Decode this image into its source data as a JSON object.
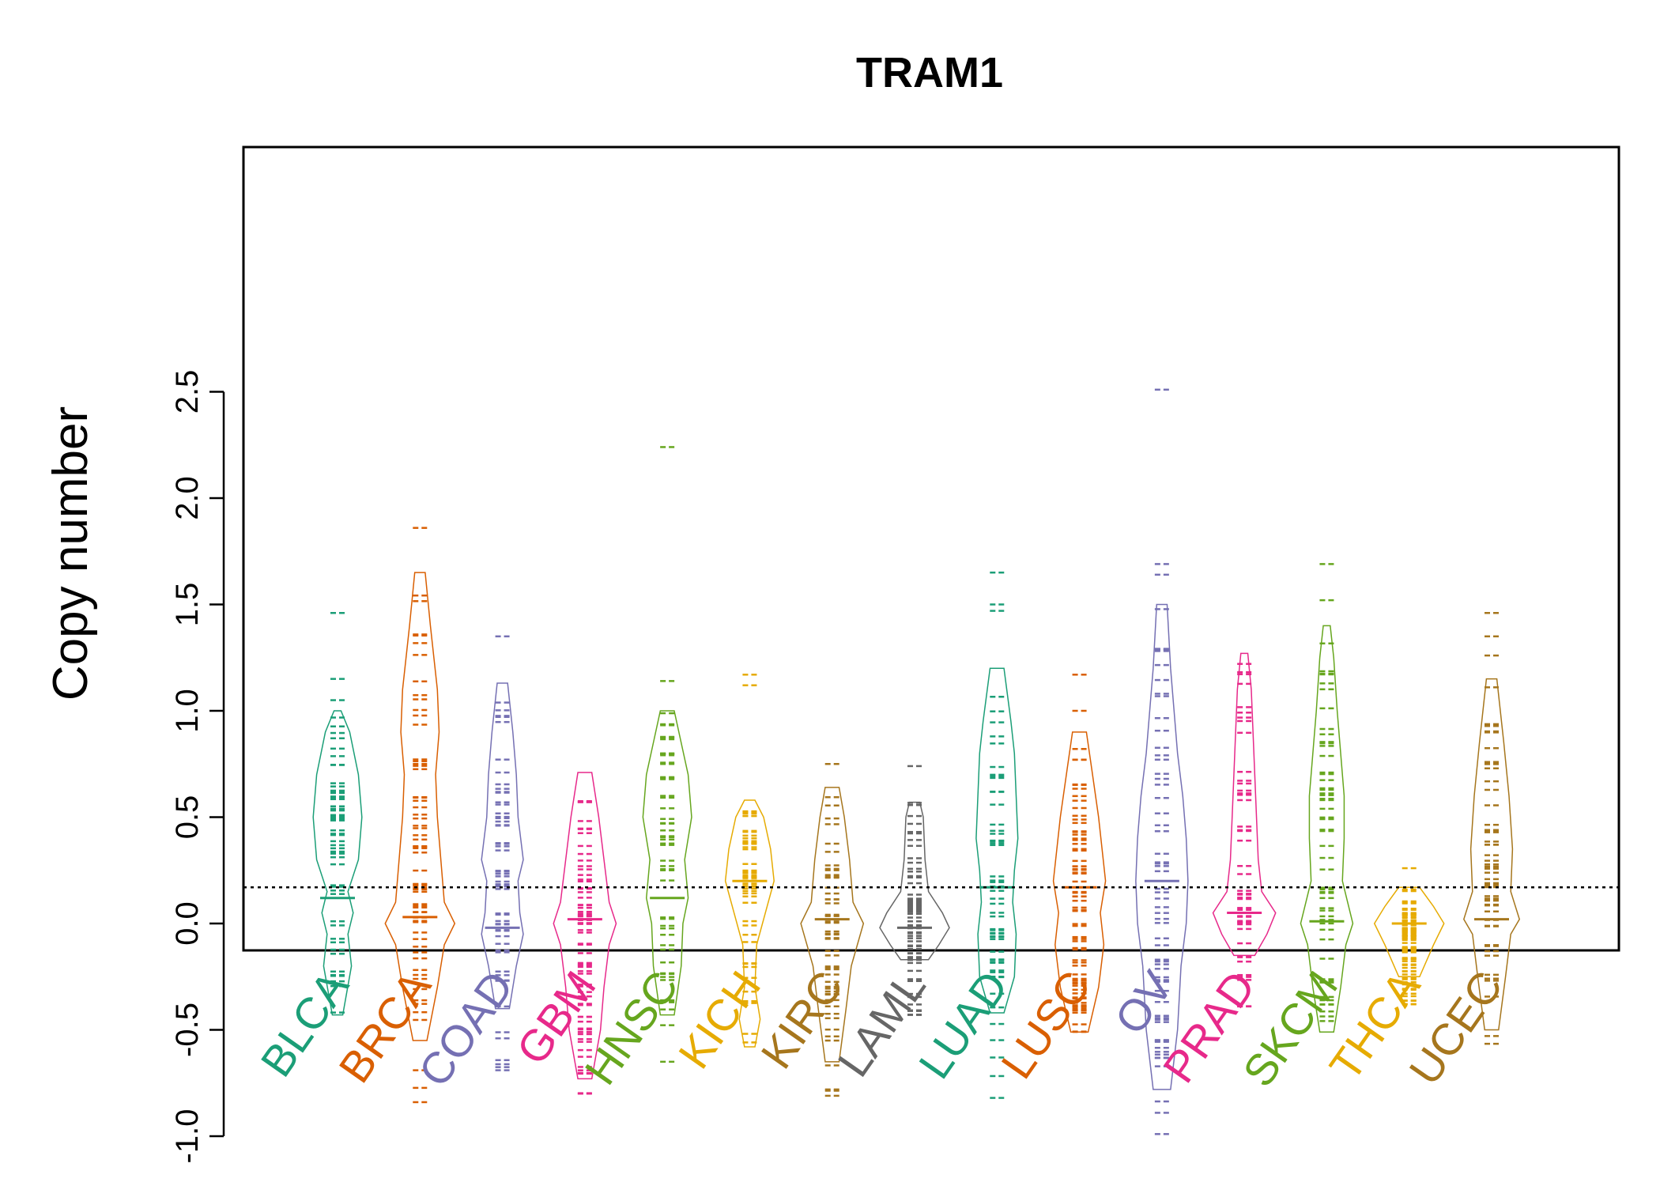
{
  "chart_data": {
    "type": "beanplot",
    "title": "TRAM1",
    "xlabel": "",
    "ylabel": "Copy number",
    "ylim": [
      -1.12,
      2.66
    ],
    "yticks": [
      -1.0,
      -0.5,
      0.0,
      0.5,
      1.0,
      1.5,
      2.0,
      2.5
    ],
    "ytick_labels": [
      "-1.0",
      "-0.5",
      "0.0",
      "0.5",
      "1.0",
      "1.5",
      "2.0",
      "2.5"
    ],
    "reference_line": 0.17,
    "grid": false,
    "legend": "none",
    "series": [
      {
        "name": "BLCA",
        "color": "#1B9E77",
        "median": 0.12,
        "range": [
          -0.43,
          1.46
        ],
        "outliers": [
          1.46,
          1.15,
          1.05
        ],
        "density": [
          [
            -0.43,
            0.15
          ],
          [
            -0.2,
            0.4
          ],
          [
            -0.05,
            0.3
          ],
          [
            0.05,
            0.45
          ],
          [
            0.15,
            0.3
          ],
          [
            0.3,
            0.6
          ],
          [
            0.5,
            0.7
          ],
          [
            0.7,
            0.6
          ],
          [
            0.9,
            0.35
          ],
          [
            1.0,
            0.1
          ]
        ]
      },
      {
        "name": "BRCA",
        "color": "#D95F02",
        "median": 0.03,
        "range": [
          -0.84,
          1.86
        ],
        "outliers": [
          1.86,
          -0.69,
          -0.84
        ],
        "density": [
          [
            -0.55,
            0.2
          ],
          [
            -0.3,
            0.5
          ],
          [
            -0.1,
            0.7
          ],
          [
            0.0,
            1.0
          ],
          [
            0.1,
            0.7
          ],
          [
            0.3,
            0.6
          ],
          [
            0.5,
            0.5
          ],
          [
            0.7,
            0.45
          ],
          [
            0.9,
            0.55
          ],
          [
            1.1,
            0.5
          ],
          [
            1.4,
            0.3
          ],
          [
            1.65,
            0.15
          ]
        ]
      },
      {
        "name": "COAD",
        "color": "#7570B3",
        "median": -0.02,
        "range": [
          -0.69,
          1.35
        ],
        "outliers": [
          1.35,
          -0.54,
          -0.69
        ],
        "density": [
          [
            -0.4,
            0.2
          ],
          [
            -0.2,
            0.4
          ],
          [
            -0.05,
            0.6
          ],
          [
            0.05,
            0.5
          ],
          [
            0.2,
            0.45
          ],
          [
            0.3,
            0.6
          ],
          [
            0.5,
            0.45
          ],
          [
            0.7,
            0.4
          ],
          [
            0.9,
            0.3
          ],
          [
            1.13,
            0.15
          ]
        ]
      },
      {
        "name": "GBM",
        "color": "#E7298A",
        "median": 0.02,
        "range": [
          -0.8,
          0.71
        ],
        "outliers": [
          -0.8
        ],
        "density": [
          [
            -0.73,
            0.2
          ],
          [
            -0.5,
            0.45
          ],
          [
            -0.3,
            0.55
          ],
          [
            -0.1,
            0.7
          ],
          [
            0.0,
            0.9
          ],
          [
            0.1,
            0.7
          ],
          [
            0.3,
            0.55
          ],
          [
            0.5,
            0.4
          ],
          [
            0.71,
            0.2
          ]
        ]
      },
      {
        "name": "HNSC",
        "color": "#66A61E",
        "median": 0.12,
        "range": [
          -0.65,
          2.24
        ],
        "outliers": [
          2.24,
          1.14,
          -0.65
        ],
        "density": [
          [
            -0.43,
            0.2
          ],
          [
            -0.2,
            0.4
          ],
          [
            0.0,
            0.45
          ],
          [
            0.12,
            0.6
          ],
          [
            0.3,
            0.5
          ],
          [
            0.5,
            0.7
          ],
          [
            0.7,
            0.6
          ],
          [
            0.85,
            0.4
          ],
          [
            1.0,
            0.2
          ]
        ]
      },
      {
        "name": "KICH",
        "color": "#E6AB02",
        "median": 0.2,
        "range": [
          -0.6,
          1.17
        ],
        "outliers": [
          1.17,
          1.12
        ],
        "density": [
          [
            -0.58,
            0.15
          ],
          [
            -0.45,
            0.3
          ],
          [
            -0.3,
            0.15
          ],
          [
            -0.1,
            0.2
          ],
          [
            0.05,
            0.45
          ],
          [
            0.2,
            0.7
          ],
          [
            0.35,
            0.6
          ],
          [
            0.5,
            0.4
          ],
          [
            0.58,
            0.15
          ]
        ]
      },
      {
        "name": "KIRC",
        "color": "#A6761D",
        "median": 0.02,
        "range": [
          -0.81,
          0.75
        ],
        "outliers": [
          0.75,
          -0.81
        ],
        "density": [
          [
            -0.65,
            0.2
          ],
          [
            -0.4,
            0.4
          ],
          [
            -0.2,
            0.55
          ],
          [
            0.0,
            0.9
          ],
          [
            0.1,
            0.6
          ],
          [
            0.3,
            0.5
          ],
          [
            0.5,
            0.35
          ],
          [
            0.64,
            0.2
          ]
        ]
      },
      {
        "name": "LAML",
        "color": "#666666",
        "median": -0.02,
        "range": [
          -0.43,
          0.74
        ],
        "outliers": [
          0.74,
          -0.43
        ],
        "density": [
          [
            -0.17,
            0.4
          ],
          [
            -0.1,
            0.7
          ],
          [
            -0.02,
            1.0
          ],
          [
            0.05,
            0.8
          ],
          [
            0.15,
            0.4
          ],
          [
            0.3,
            0.3
          ],
          [
            0.5,
            0.25
          ],
          [
            0.57,
            0.15
          ]
        ]
      },
      {
        "name": "LUAD",
        "color": "#1B9E77",
        "median": 0.17,
        "range": [
          -0.82,
          1.65
        ],
        "outliers": [
          1.65,
          1.5,
          1.47,
          -0.63,
          -0.82
        ],
        "density": [
          [
            -0.42,
            0.2
          ],
          [
            -0.25,
            0.5
          ],
          [
            -0.05,
            0.55
          ],
          [
            0.1,
            0.45
          ],
          [
            0.25,
            0.5
          ],
          [
            0.4,
            0.6
          ],
          [
            0.6,
            0.55
          ],
          [
            0.8,
            0.5
          ],
          [
            0.95,
            0.4
          ],
          [
            1.2,
            0.2
          ]
        ]
      },
      {
        "name": "LUSC",
        "color": "#D95F02",
        "median": 0.17,
        "range": [
          -0.51,
          1.17
        ],
        "outliers": [
          1.17,
          1.0
        ],
        "density": [
          [
            -0.51,
            0.25
          ],
          [
            -0.3,
            0.55
          ],
          [
            -0.1,
            0.7
          ],
          [
            0.05,
            0.6
          ],
          [
            0.2,
            0.75
          ],
          [
            0.35,
            0.65
          ],
          [
            0.5,
            0.55
          ],
          [
            0.73,
            0.35
          ],
          [
            0.9,
            0.2
          ]
        ]
      },
      {
        "name": "OV",
        "color": "#7570B3",
        "median": 0.2,
        "range": [
          -0.99,
          2.51
        ],
        "outliers": [
          2.51,
          1.69,
          1.64,
          -0.89,
          -0.99
        ],
        "density": [
          [
            -0.78,
            0.25
          ],
          [
            -0.5,
            0.45
          ],
          [
            -0.2,
            0.55
          ],
          [
            0.0,
            0.7
          ],
          [
            0.2,
            0.75
          ],
          [
            0.4,
            0.7
          ],
          [
            0.6,
            0.6
          ],
          [
            0.8,
            0.45
          ],
          [
            1.0,
            0.35
          ],
          [
            1.2,
            0.25
          ],
          [
            1.5,
            0.15
          ]
        ]
      },
      {
        "name": "PRAD",
        "color": "#E7298A",
        "median": 0.05,
        "range": [
          -0.39,
          1.27
        ],
        "outliers": [
          -0.39
        ],
        "density": [
          [
            -0.15,
            0.3
          ],
          [
            -0.05,
            0.65
          ],
          [
            0.05,
            0.9
          ],
          [
            0.15,
            0.5
          ],
          [
            0.3,
            0.4
          ],
          [
            0.5,
            0.35
          ],
          [
            0.7,
            0.3
          ],
          [
            0.9,
            0.25
          ],
          [
            1.1,
            0.2
          ],
          [
            1.27,
            0.1
          ]
        ]
      },
      {
        "name": "SKCM",
        "color": "#66A61E",
        "median": 0.01,
        "range": [
          -0.51,
          1.69
        ],
        "outliers": [
          1.69,
          1.52
        ],
        "density": [
          [
            -0.51,
            0.2
          ],
          [
            -0.3,
            0.4
          ],
          [
            -0.1,
            0.55
          ],
          [
            0.0,
            0.75
          ],
          [
            0.2,
            0.45
          ],
          [
            0.4,
            0.5
          ],
          [
            0.6,
            0.5
          ],
          [
            0.8,
            0.4
          ],
          [
            1.0,
            0.3
          ],
          [
            1.25,
            0.2
          ],
          [
            1.4,
            0.1
          ]
        ]
      },
      {
        "name": "THCA",
        "color": "#E6AB02",
        "median": 0.0,
        "range": [
          -0.38,
          0.26
        ],
        "outliers": [
          0.26,
          -0.33,
          -0.38
        ],
        "density": [
          [
            -0.25,
            0.3
          ],
          [
            -0.1,
            0.7
          ],
          [
            0.0,
            1.0
          ],
          [
            0.08,
            0.7
          ],
          [
            0.17,
            0.3
          ]
        ]
      },
      {
        "name": "UCEC",
        "color": "#A6761D",
        "median": 0.02,
        "range": [
          -0.57,
          1.46
        ],
        "outliers": [
          1.46,
          1.35,
          1.26
        ],
        "density": [
          [
            -0.5,
            0.2
          ],
          [
            -0.25,
            0.4
          ],
          [
            -0.05,
            0.55
          ],
          [
            0.02,
            0.8
          ],
          [
            0.15,
            0.55
          ],
          [
            0.35,
            0.6
          ],
          [
            0.6,
            0.5
          ],
          [
            0.85,
            0.35
          ],
          [
            1.15,
            0.15
          ]
        ]
      }
    ]
  }
}
